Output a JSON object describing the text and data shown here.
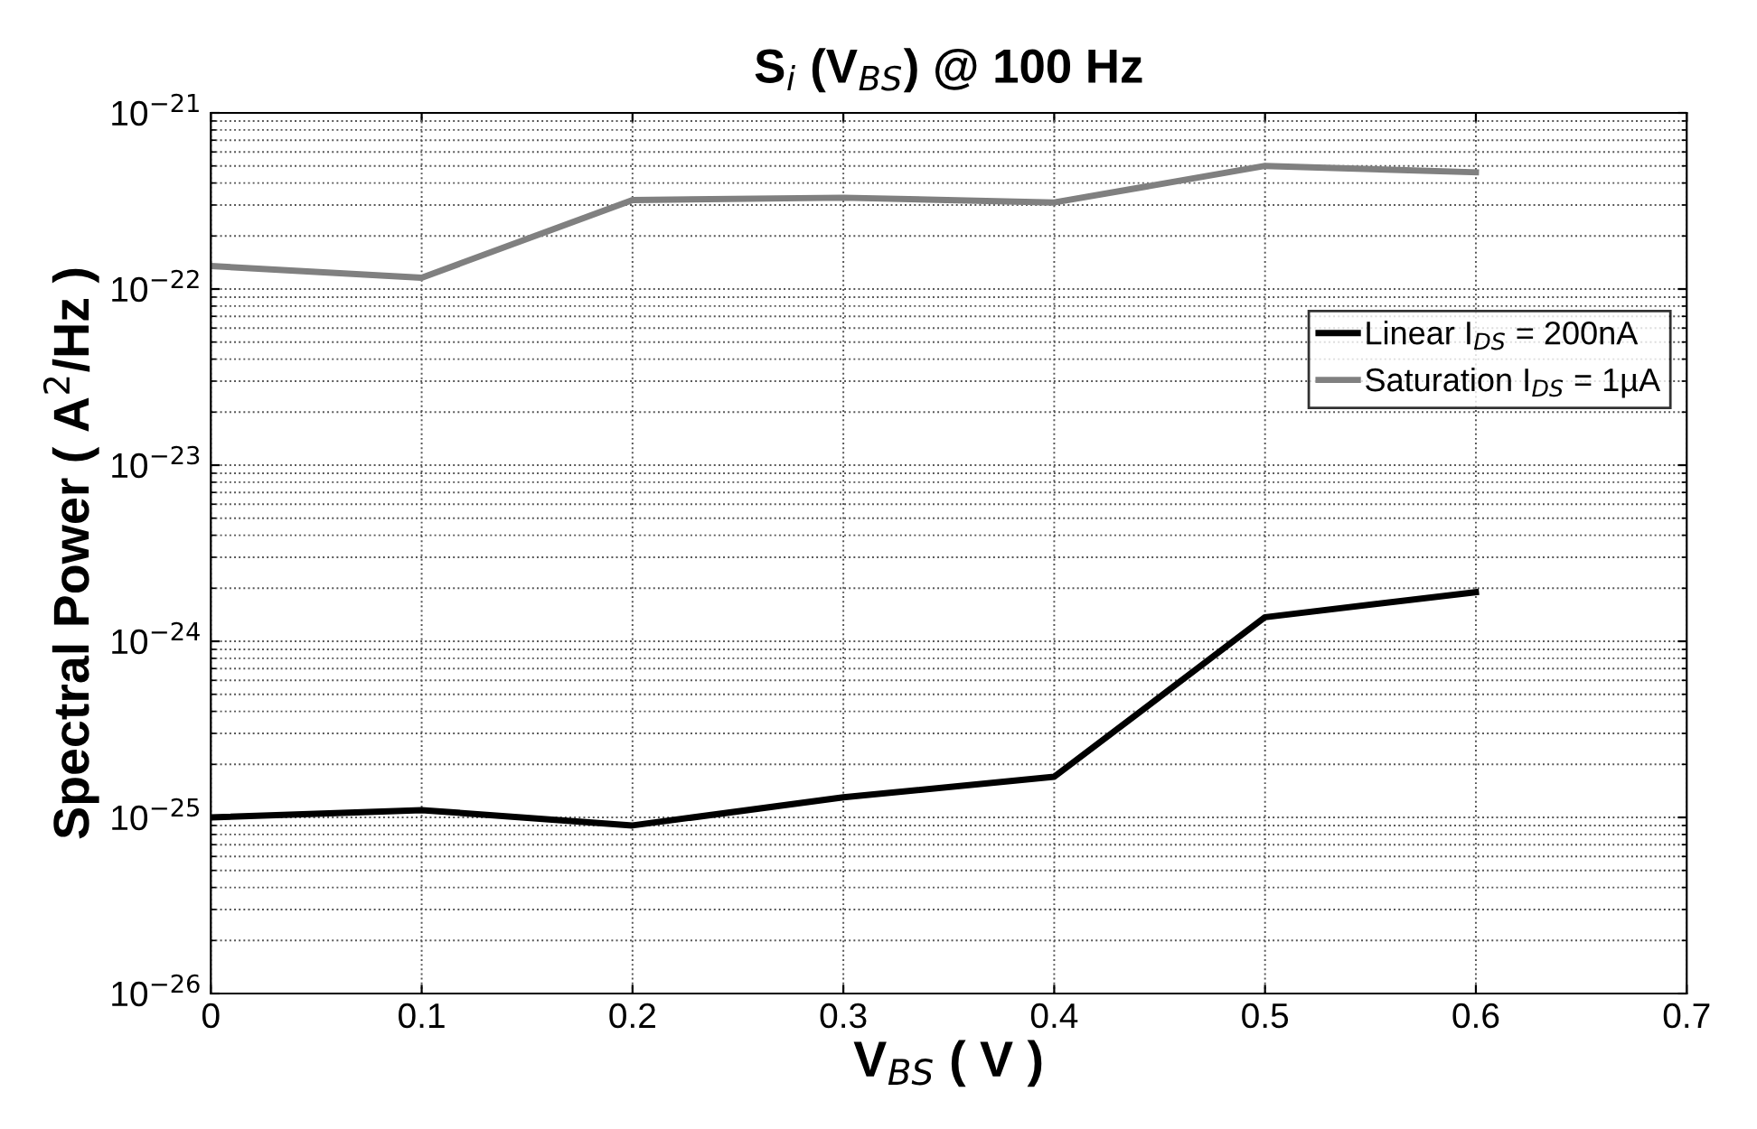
{
  "chart_data": {
    "type": "line",
    "title": "S$_{i}$ (V$_{BS}$) @ 100 Hz",
    "xlabel": "V$_{BS}$ ( V )",
    "ylabel": "Spectral Power ( A$^{2}$/Hz )",
    "x": [
      0,
      0.1,
      0.2,
      0.3,
      0.4,
      0.5,
      0.6
    ],
    "series": [
      {
        "name": "Linear I$_{DS}$ = 200nA",
        "color": "#000000",
        "values": [
          1e-25,
          1.1e-25,
          9e-26,
          1.3e-25,
          1.7e-25,
          1.37e-24,
          1.9e-24
        ]
      },
      {
        "name": "Saturation I$_{DS}$ = 1µA",
        "color": "#808080",
        "values": [
          1.35e-22,
          1.16e-22,
          3.2e-22,
          3.3e-22,
          3.1e-22,
          5e-22,
          4.6e-22
        ]
      }
    ],
    "log": "y",
    "xlim": [
      0,
      0.7
    ],
    "ylim": [
      1e-26,
      1e-21
    ],
    "xticks": [
      0,
      0.1,
      0.2,
      0.3,
      0.4,
      0.5,
      0.6,
      0.7
    ],
    "yticks": [
      {
        "value": 1e-26,
        "label": "10$^{−26}$"
      },
      {
        "value": 1e-25,
        "label": "10$^{−25}$"
      },
      {
        "value": 1e-24,
        "label": "10$^{−24}$"
      },
      {
        "value": 1e-23,
        "label": "10$^{−23}$"
      },
      {
        "value": 1e-22,
        "label": "10$^{−22}$"
      },
      {
        "value": 1e-21,
        "label": "10$^{−21}$"
      }
    ],
    "grid": true,
    "legend": "right",
    "marker": "none",
    "line_style": "solid"
  }
}
